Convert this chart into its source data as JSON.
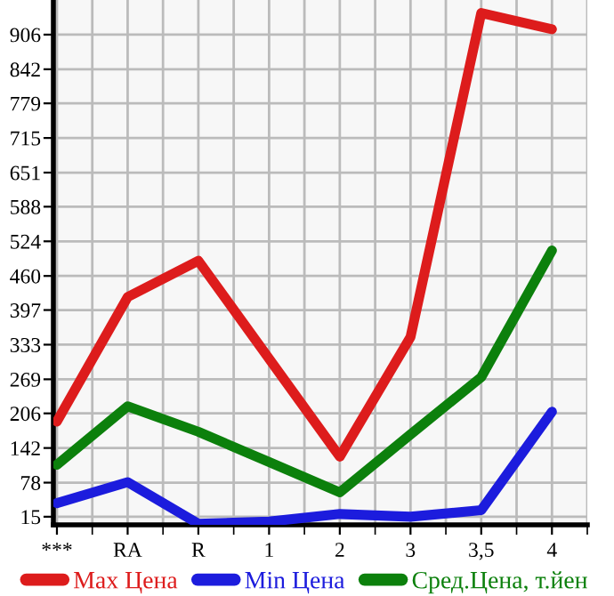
{
  "chart_data": {
    "type": "line",
    "categories": [
      "***",
      "RA",
      "R",
      "1",
      "2",
      "3",
      "3,5",
      "4"
    ],
    "series": [
      {
        "name": "Max Цена",
        "color": "#dd1c1c",
        "values": [
          191,
          421,
          488,
          307,
          126,
          347,
          946,
          916
        ]
      },
      {
        "name": "Min Цена",
        "color": "#1c1cdd",
        "values": [
          40,
          79,
          2,
          6,
          20,
          15,
          27,
          209
        ]
      },
      {
        "name": "Сред.Цена, т.йен",
        "color": "#0c800c",
        "values": [
          111,
          219,
          172,
          116,
          60,
          167,
          273,
          507
        ]
      }
    ],
    "ylim": [
      0,
      970
    ],
    "yticks": [
      15,
      78,
      142,
      206,
      269,
      333,
      397,
      460,
      524,
      588,
      651,
      715,
      779,
      842,
      906
    ],
    "grid": true,
    "legend": "bottom",
    "marker": "none",
    "line_style": "solid"
  }
}
